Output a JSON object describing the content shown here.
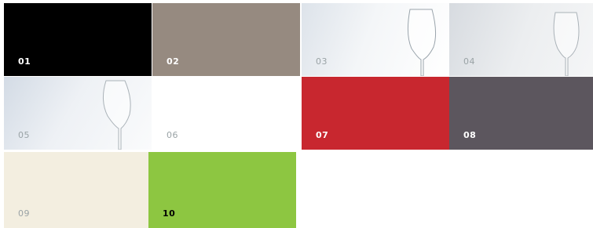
{
  "tiles": [
    {
      "label": "01"
    },
    {
      "label": "02"
    },
    {
      "label": "03"
    },
    {
      "label": "04"
    },
    {
      "label": "05"
    },
    {
      "label": "06"
    },
    {
      "label": "07"
    },
    {
      "label": "08"
    },
    {
      "label": "09"
    },
    {
      "label": "10"
    }
  ]
}
